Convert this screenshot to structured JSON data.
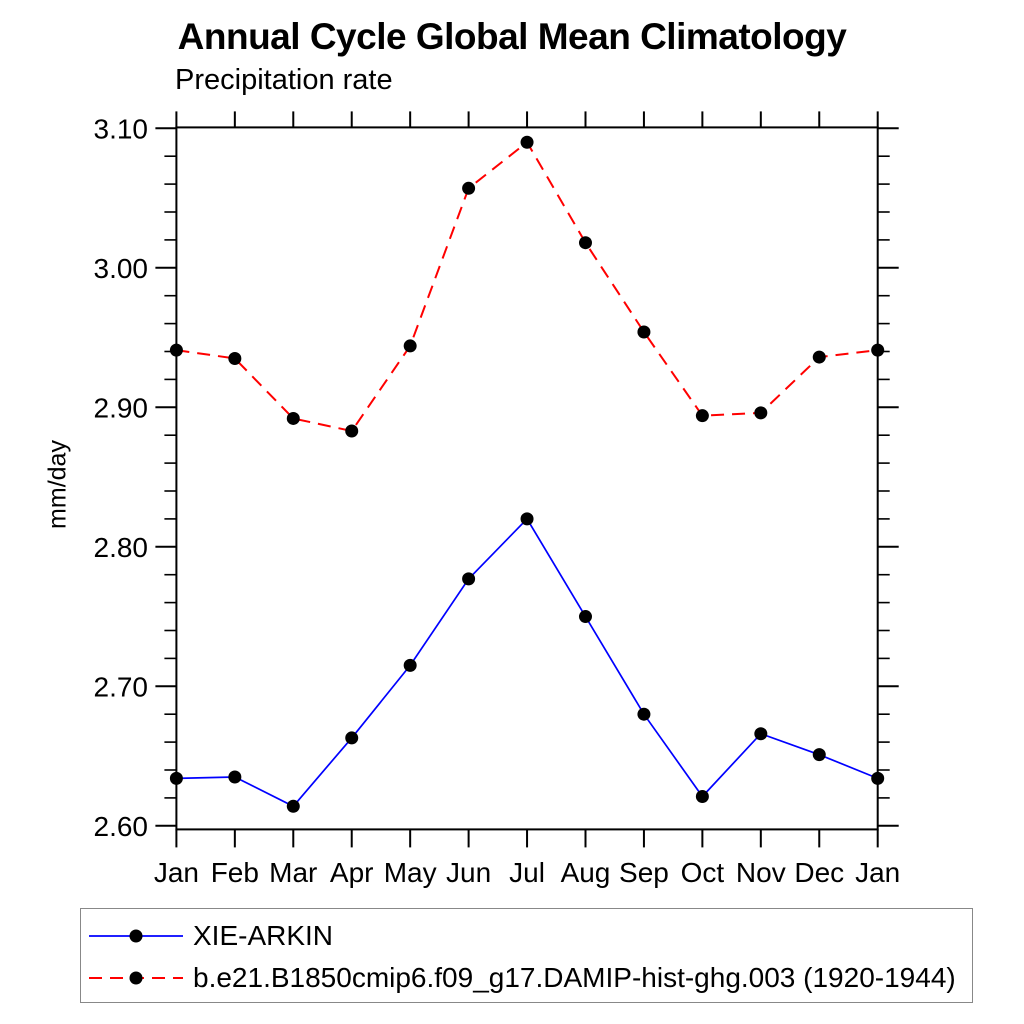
{
  "title": "Annual Cycle Global Mean Climatology",
  "subtitle": "Precipitation rate",
  "ylabel": "mm/day",
  "colors": {
    "series1": "#0000ff",
    "series2": "#ff0000",
    "marker": "#000000",
    "axis": "#000000",
    "legend_border": "#888888",
    "background": "#ffffff"
  },
  "chart_data": {
    "type": "line",
    "title": "Annual Cycle Global Mean Climatology",
    "subtitle": "Precipitation rate",
    "xlabel": "",
    "ylabel": "mm/day",
    "x_categories": [
      "Jan",
      "Feb",
      "Mar",
      "Apr",
      "May",
      "Jun",
      "Jul",
      "Aug",
      "Sep",
      "Oct",
      "Nov",
      "Dec",
      "Jan"
    ],
    "y_tick_labels": [
      "2.60",
      "2.70",
      "2.80",
      "2.90",
      "3.00",
      "3.10"
    ],
    "y_minor_step": 0.02,
    "ylim": [
      2.597,
      3.101
    ],
    "grid": false,
    "legend_position": "bottom-left-box",
    "series": [
      {
        "name": "XIE-ARKIN",
        "color": "#0000ff",
        "line_style": "solid",
        "marker": "filled-circle",
        "marker_color": "#000000",
        "values": [
          2.634,
          2.635,
          2.614,
          2.663,
          2.715,
          2.777,
          2.82,
          2.75,
          2.68,
          2.621,
          2.666,
          2.651,
          2.634
        ]
      },
      {
        "name": "b.e21.B1850cmip6.f09_g17.DAMIP-hist-ghg.003 (1920-1944)",
        "color": "#ff0000",
        "line_style": "dashed",
        "marker": "filled-circle",
        "marker_color": "#000000",
        "values": [
          2.941,
          2.935,
          2.892,
          2.883,
          2.944,
          3.057,
          3.09,
          3.018,
          2.954,
          2.894,
          2.896,
          2.936,
          2.941
        ]
      }
    ]
  }
}
